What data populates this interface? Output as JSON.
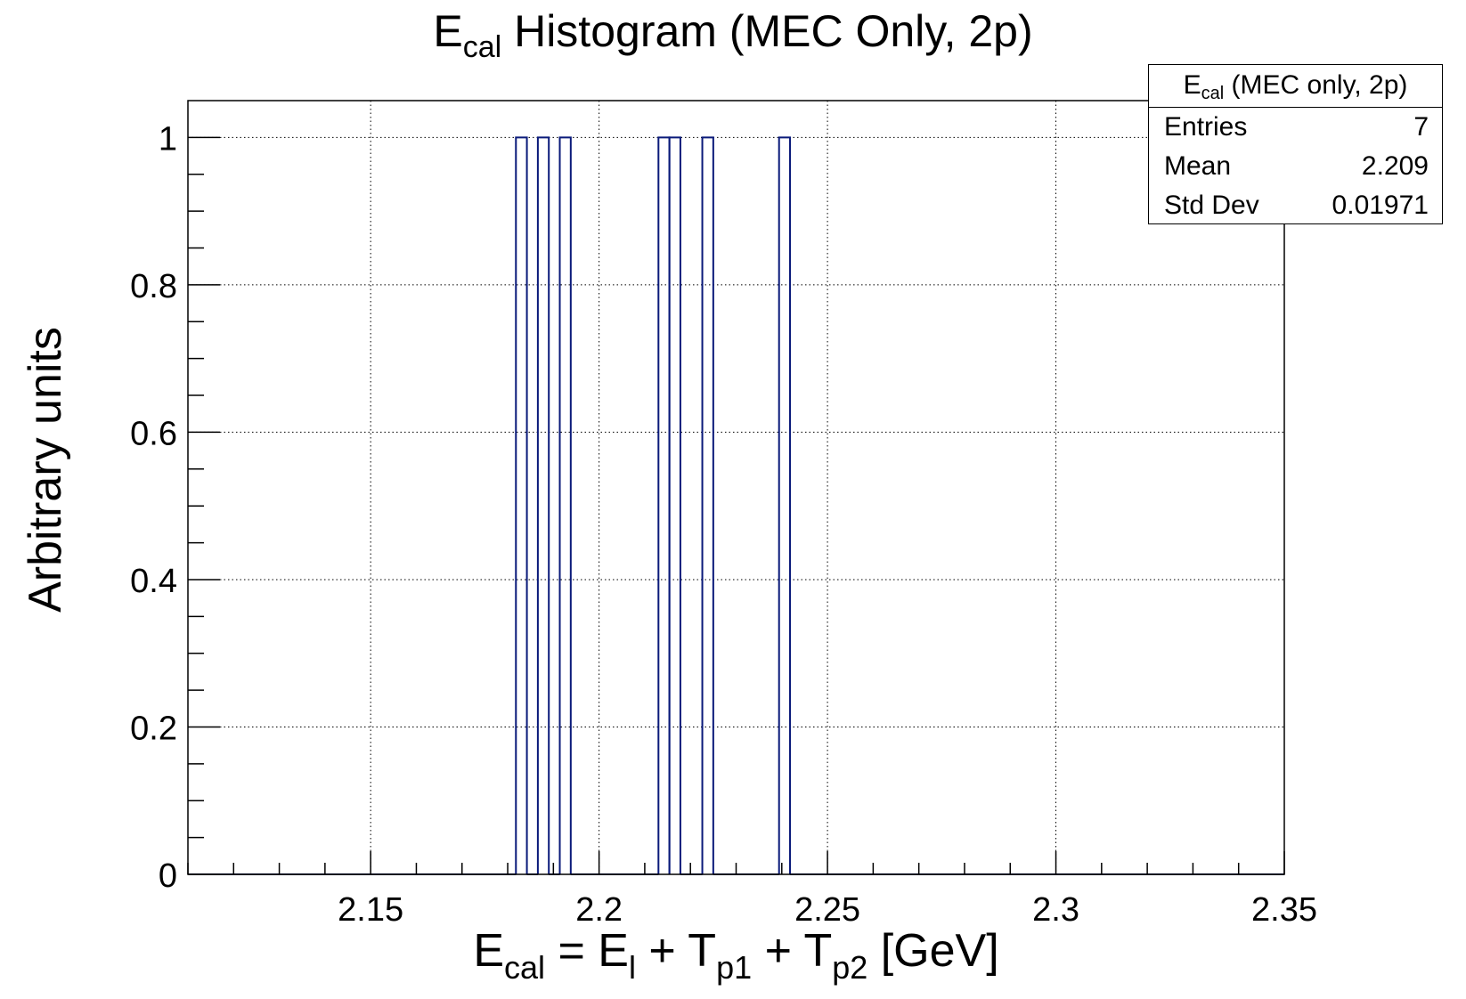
{
  "chart_data": {
    "type": "histogram",
    "title": {
      "main": "E",
      "sub": "cal",
      "rest": " Histogram (MEC Only, 2p)"
    },
    "xlabel": {
      "parts": [
        {
          "t": "E"
        },
        {
          "t": "cal",
          "sub": true
        },
        {
          "t": " = E"
        },
        {
          "t": "l",
          "sub": true
        },
        {
          "t": " + T"
        },
        {
          "t": "p1",
          "sub": true
        },
        {
          "t": " + T"
        },
        {
          "t": "p2",
          "sub": true
        },
        {
          "t": " [GeV]"
        }
      ]
    },
    "ylabel": "Arbitrary units",
    "xlim": [
      2.11,
      2.35
    ],
    "ylim": [
      0,
      1.05
    ],
    "xticks": [
      {
        "value": 2.15,
        "label": "2.15"
      },
      {
        "value": 2.2,
        "label": "2.2"
      },
      {
        "value": 2.25,
        "label": "2.25"
      },
      {
        "value": 2.3,
        "label": "2.3"
      },
      {
        "value": 2.35,
        "label": "2.35"
      }
    ],
    "yticks": [
      {
        "value": 0,
        "label": "0"
      },
      {
        "value": 0.2,
        "label": "0.2"
      },
      {
        "value": 0.4,
        "label": "0.4"
      },
      {
        "value": 0.6,
        "label": "0.6"
      },
      {
        "value": 0.8,
        "label": "0.8"
      },
      {
        "value": 1,
        "label": "1"
      }
    ],
    "bins": [
      {
        "x0": 2.1818,
        "x1": 2.1842,
        "count": 1
      },
      {
        "x0": 2.1866,
        "x1": 2.189,
        "count": 1
      },
      {
        "x0": 2.1914,
        "x1": 2.1938,
        "count": 1
      },
      {
        "x0": 2.213,
        "x1": 2.2154,
        "count": 1
      },
      {
        "x0": 2.2154,
        "x1": 2.2178,
        "count": 1
      },
      {
        "x0": 2.2226,
        "x1": 2.225,
        "count": 1
      },
      {
        "x0": 2.2394,
        "x1": 2.2418,
        "count": 1
      }
    ],
    "grid": true,
    "line_color": "#0a1a7a",
    "stats": {
      "title_main": "E",
      "title_sub": "cal",
      "title_rest": " (MEC only, 2p)",
      "rows": [
        {
          "label": "Entries",
          "value": "7"
        },
        {
          "label": "Mean",
          "value": "2.209"
        },
        {
          "label": "Std Dev",
          "value": "0.01971"
        }
      ]
    }
  }
}
